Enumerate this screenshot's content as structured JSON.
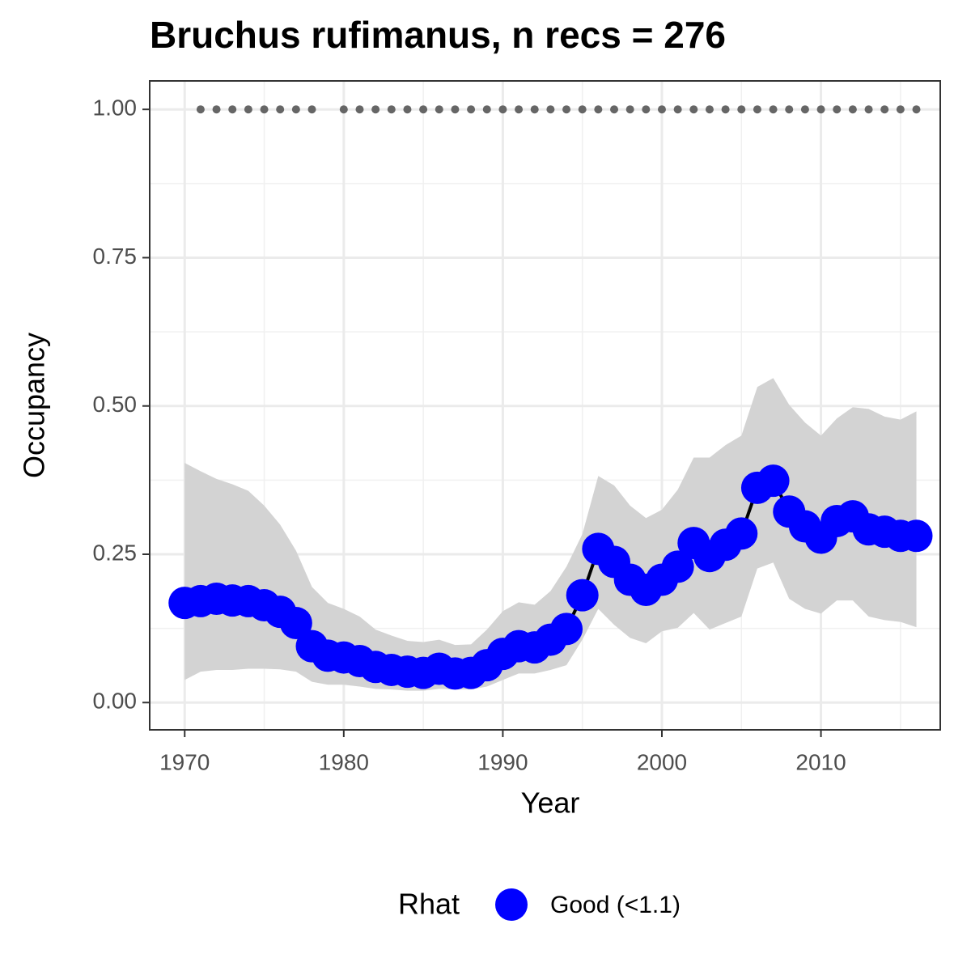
{
  "chart_data": {
    "type": "line",
    "title": "Bruchus rufimanus, n recs = 276",
    "x_label": "Year",
    "y_label": "Occupancy",
    "legend_title": "Rhat",
    "legend_position": "bottom",
    "x": [
      1970,
      1971,
      1972,
      1973,
      1974,
      1975,
      1976,
      1977,
      1978,
      1979,
      1980,
      1981,
      1982,
      1983,
      1984,
      1985,
      1986,
      1987,
      1988,
      1989,
      1990,
      1991,
      1992,
      1993,
      1994,
      1995,
      1996,
      1997,
      1998,
      1999,
      2000,
      2001,
      2002,
      2003,
      2004,
      2005,
      2006,
      2007,
      2008,
      2009,
      2010,
      2011,
      2012,
      2013,
      2014,
      2015,
      2016
    ],
    "series": [
      {
        "name": "Good (<1.1)",
        "color": "#0000ff",
        "values": [
          0.168,
          0.171,
          0.175,
          0.172,
          0.171,
          0.164,
          0.153,
          0.134,
          0.095,
          0.079,
          0.076,
          0.07,
          0.06,
          0.055,
          0.052,
          0.05,
          0.057,
          0.049,
          0.05,
          0.063,
          0.082,
          0.095,
          0.093,
          0.106,
          0.124,
          0.181,
          0.259,
          0.237,
          0.207,
          0.19,
          0.207,
          0.229,
          0.269,
          0.247,
          0.266,
          0.285,
          0.362,
          0.374,
          0.322,
          0.297,
          0.278,
          0.306,
          0.314,
          0.292,
          0.288,
          0.281,
          0.281
        ]
      }
    ],
    "upper": [
      0.404,
      0.39,
      0.377,
      0.368,
      0.357,
      0.332,
      0.3,
      0.256,
      0.195,
      0.168,
      0.158,
      0.145,
      0.123,
      0.113,
      0.104,
      0.102,
      0.106,
      0.097,
      0.098,
      0.123,
      0.154,
      0.169,
      0.165,
      0.188,
      0.229,
      0.284,
      0.382,
      0.366,
      0.332,
      0.311,
      0.325,
      0.359,
      0.413,
      0.413,
      0.434,
      0.45,
      0.532,
      0.547,
      0.502,
      0.472,
      0.45,
      0.479,
      0.498,
      0.495,
      0.482,
      0.477,
      0.491
    ],
    "lower": [
      0.038,
      0.052,
      0.055,
      0.055,
      0.057,
      0.057,
      0.056,
      0.052,
      0.035,
      0.03,
      0.03,
      0.027,
      0.023,
      0.022,
      0.02,
      0.02,
      0.023,
      0.022,
      0.022,
      0.027,
      0.038,
      0.049,
      0.049,
      0.055,
      0.063,
      0.106,
      0.158,
      0.131,
      0.109,
      0.1,
      0.12,
      0.126,
      0.151,
      0.123,
      0.134,
      0.145,
      0.226,
      0.236,
      0.175,
      0.158,
      0.15,
      0.172,
      0.172,
      0.145,
      0.139,
      0.136,
      0.127
    ],
    "band_color": "#d3d3d3",
    "detections": [
      null,
      1,
      1,
      1,
      1,
      1,
      1,
      1,
      1,
      null,
      1,
      1,
      1,
      1,
      1,
      1,
      1,
      1,
      1,
      1,
      1,
      1,
      1,
      1,
      1,
      1,
      1,
      1,
      1,
      1,
      1,
      1,
      1,
      1,
      1,
      1,
      1,
      1,
      1,
      1,
      1,
      1,
      1,
      1,
      1,
      1,
      1
    ],
    "detections_color": "#666666",
    "xlim": [
      1967.8,
      2017.5
    ],
    "ylim": [
      -0.046,
      1.048
    ],
    "xticks": [
      1970,
      1980,
      1990,
      2000,
      2010
    ],
    "yticks": [
      {
        "value": 0,
        "label": "0.00"
      },
      {
        "value": 0.25,
        "label": "0.25"
      },
      {
        "value": 0.5,
        "label": "0.50"
      },
      {
        "value": 0.75,
        "label": "0.75"
      },
      {
        "value": 1,
        "label": "1.00"
      }
    ],
    "minor_xticks": [
      1975,
      1985,
      1995,
      2005,
      2015
    ],
    "minor_yticks": [
      0.125,
      0.375,
      0.625,
      0.875
    ],
    "grid": true
  }
}
